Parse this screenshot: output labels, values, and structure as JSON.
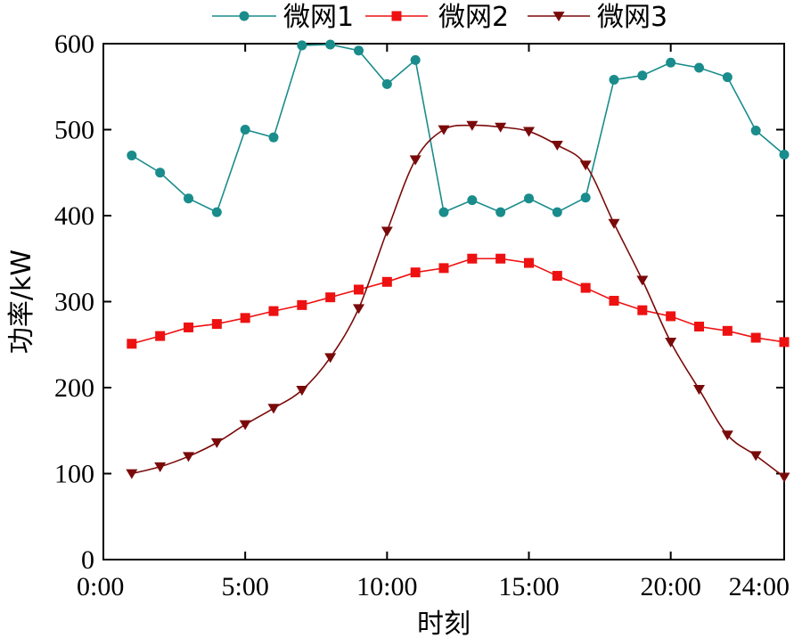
{
  "chart_data": {
    "type": "line",
    "xlabel": "时刻",
    "ylabel": "功率/kW",
    "xlim": [
      0,
      24
    ],
    "ylim": [
      0,
      600
    ],
    "x_ticks": [
      {
        "value": 0,
        "label": "0:00"
      },
      {
        "value": 5,
        "label": "5:00"
      },
      {
        "value": 10,
        "label": "10:00"
      },
      {
        "value": 15,
        "label": "15:00"
      },
      {
        "value": 20,
        "label": "20:00"
      },
      {
        "value": 24,
        "label": "24:00"
      }
    ],
    "y_ticks": [
      {
        "value": 0,
        "label": "0"
      },
      {
        "value": 100,
        "label": "100"
      },
      {
        "value": 200,
        "label": "200"
      },
      {
        "value": 300,
        "label": "300"
      },
      {
        "value": 400,
        "label": "400"
      },
      {
        "value": 500,
        "label": "500"
      },
      {
        "value": 600,
        "label": "600"
      }
    ],
    "grid": false,
    "legend_position": "top",
    "x": [
      1,
      2,
      3,
      4,
      5,
      6,
      7,
      8,
      9,
      10,
      11,
      12,
      13,
      14,
      15,
      16,
      17,
      18,
      19,
      20,
      21,
      22,
      23,
      24
    ],
    "series": [
      {
        "name": "微网1",
        "color": "#1a8c8c",
        "marker": "circle",
        "smooth": false,
        "values": [
          470,
          450,
          420,
          404,
          500,
          491,
          598,
          599,
          592,
          553,
          581,
          404,
          418,
          404,
          420,
          404,
          421,
          558,
          563,
          578,
          572,
          561,
          499,
          471
        ]
      },
      {
        "name": "微网2",
        "color": "#ee1111",
        "marker": "square",
        "smooth": false,
        "values": [
          251,
          260,
          270,
          274,
          281,
          289,
          296,
          305,
          314,
          323,
          334,
          339,
          350,
          350,
          345,
          330,
          316,
          301,
          290,
          283,
          271,
          266,
          258,
          253
        ]
      },
      {
        "name": "微网3",
        "color": "#7a0a0a",
        "marker": "triangle-down",
        "smooth": true,
        "values": [
          100,
          108,
          120,
          136,
          157,
          176,
          197,
          235,
          292,
          382,
          465,
          500,
          505,
          503,
          498,
          482,
          459,
          391,
          325,
          253,
          198,
          145,
          121,
          96
        ]
      }
    ]
  }
}
